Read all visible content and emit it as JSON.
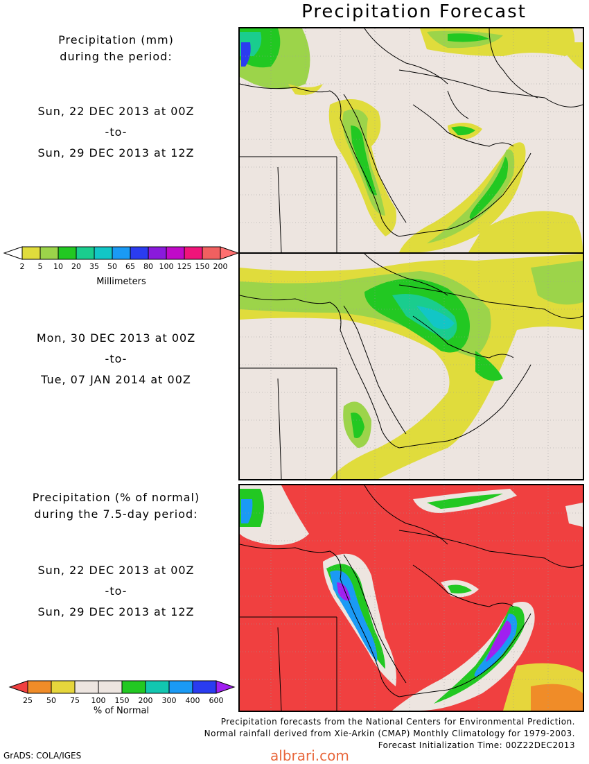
{
  "title": "Precipitation Forecast",
  "panel1": {
    "heading_line1": "Precipitation (mm)",
    "heading_line2": "during the period:",
    "start": "Sun, 22 DEC 2013 at 00Z",
    "to": "-to-",
    "end": "Sun, 29 DEC 2013 at 12Z"
  },
  "panel2": {
    "start": "Mon, 30 DEC 2013 at 00Z",
    "to": "-to-",
    "end": "Tue, 07 JAN 2014 at 00Z"
  },
  "panel3": {
    "heading_line1": "Precipitation (% of normal)",
    "heading_line2": "during the 7.5-day period:",
    "start": "Sun, 22 DEC 2013 at 00Z",
    "to": "-to-",
    "end": "Sun, 29 DEC 2013 at 12Z"
  },
  "legend_mm": {
    "unit_label": "Millimeters",
    "ticks": [
      "2",
      "5",
      "10",
      "20",
      "35",
      "50",
      "65",
      "80",
      "100",
      "125",
      "150",
      "200"
    ],
    "colors": [
      "#ffffff",
      "#e0dc3c",
      "#9cd44a",
      "#22c822",
      "#1acd8e",
      "#12c6c6",
      "#1a9af5",
      "#2a3cf0",
      "#8a1adc",
      "#c00ac8",
      "#f0147a",
      "#f06060",
      "#ff7070"
    ]
  },
  "legend_pct": {
    "unit_label": "% of Normal",
    "ticks": [
      "25",
      "50",
      "75",
      "100",
      "150",
      "200",
      "300",
      "400",
      "600"
    ],
    "colors": [
      "#f04040",
      "#f08c28",
      "#e6d63c",
      "#ede5e0",
      "#ede5e0",
      "#22c822",
      "#12c6b0",
      "#1a9af5",
      "#2a3cf0",
      "#a020f0"
    ]
  },
  "footer": {
    "line1": "Precipitation forecasts from the National Centers for Environmental Prediction.",
    "line2": "Normal rainfall derived from Xie-Arkin (CMAP) Monthly Climatology for 1979-2003.",
    "line3": "Forecast Initialization Time: 00Z22DEC2013"
  },
  "credit": "GrADS: COLA/IGES",
  "watermark": "albrari.com"
}
